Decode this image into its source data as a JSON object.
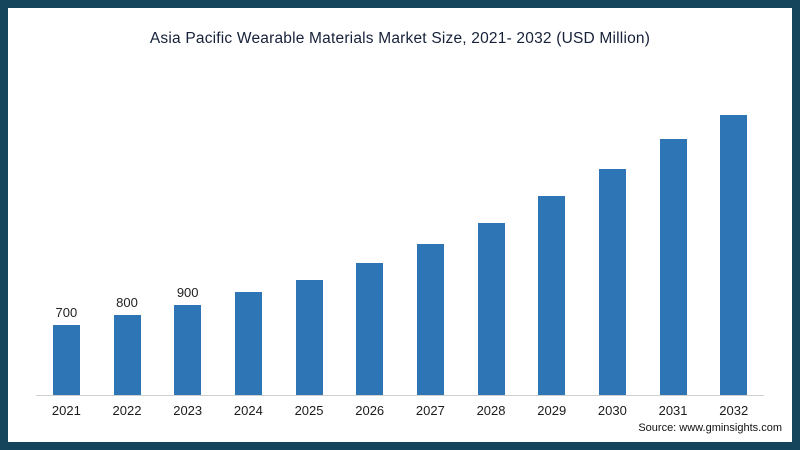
{
  "header": {
    "title": "Asia Pacific Wearable Materials Market Size, 2021- 2032 (USD Million)"
  },
  "footer": {
    "source": "Source: www.gminsights.com"
  },
  "colors": {
    "bar": "#2e75b6",
    "frame": "#15455c",
    "title_text": "#16213a",
    "label_text": "#222222"
  },
  "chart_data": {
    "type": "bar",
    "title": "Asia Pacific Wearable Materials Market Size, 2021- 2032 (USD Million)",
    "categories": [
      "2021",
      "2022",
      "2023",
      "2024",
      "2025",
      "2026",
      "2027",
      "2028",
      "2029",
      "2030",
      "2031",
      "2032"
    ],
    "values": [
      700,
      800,
      900,
      1030,
      1150,
      1320,
      1510,
      1720,
      1990,
      2260,
      2560,
      2950
    ],
    "data_labels": [
      "700",
      "800",
      "900",
      "",
      "",
      "",
      "",
      "",
      "",
      "",
      "",
      ""
    ],
    "xlabel": "",
    "ylabel": "",
    "ylim": [
      0,
      3000
    ],
    "grid": false,
    "legend": false,
    "source": "Source: www.gminsights.com"
  }
}
